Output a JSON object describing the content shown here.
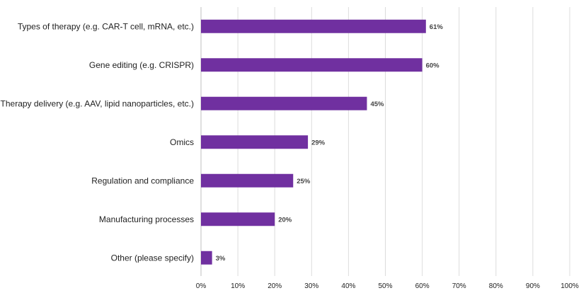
{
  "chart_data": {
    "type": "bar",
    "orientation": "horizontal",
    "title": "",
    "xlabel": "",
    "ylabel": "",
    "categories": [
      "Types of therapy (e.g. CAR-T cell, mRNA, etc.)",
      "Gene editing (e.g. CRISPR)",
      "Therapy delivery (e.g. AAV, lipid nanoparticles, etc.)",
      "Omics",
      "Regulation and compliance",
      "Manufacturing processes",
      "Other (please specify)"
    ],
    "values": [
      61,
      60,
      45,
      29,
      25,
      20,
      3
    ],
    "data_labels": [
      "61%",
      "60%",
      "45%",
      "29%",
      "25%",
      "20%",
      "3%"
    ],
    "xlim": [
      0,
      100
    ],
    "x_ticks": [
      "0%",
      "10%",
      "20%",
      "30%",
      "40%",
      "50%",
      "60%",
      "70%",
      "80%",
      "90%",
      "100%"
    ],
    "grid": "vertical",
    "bar_color": "#7030a0",
    "legend": "none"
  }
}
